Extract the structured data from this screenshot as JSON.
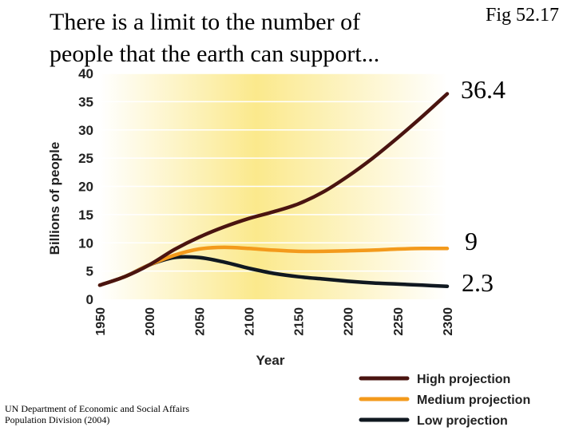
{
  "heading": {
    "line1": "There is a limit to the number of",
    "line2": "people that the earth can support..."
  },
  "figure_label": "Fig 52.17",
  "callouts": {
    "high": "36.4",
    "medium": "9",
    "low": "2.3"
  },
  "source": {
    "line1": "UN Department of Economic and Social Affairs",
    "line2": "Population Division (2004)"
  },
  "colors": {
    "high": "#4a1410",
    "medium": "#f39a1c",
    "low": "#101820",
    "background_left": "#ffffff",
    "background_center": "#fbe98c",
    "gridline": "#ffffff"
  },
  "chart_data": {
    "type": "line",
    "title": "",
    "xlabel": "Year",
    "ylabel": "Billions of people",
    "xlim": [
      1950,
      2300
    ],
    "ylim": [
      0,
      40
    ],
    "x_ticks": [
      "1950",
      "2000",
      "2050",
      "2100",
      "2150",
      "2200",
      "2250",
      "2300"
    ],
    "y_ticks": [
      "0",
      "5",
      "10",
      "15",
      "20",
      "25",
      "30",
      "35",
      "40"
    ],
    "legend_position": "bottom-right",
    "series": [
      {
        "name": "High projection",
        "color_key": "high",
        "x": [
          1950,
          1975,
          2000,
          2025,
          2050,
          2075,
          2100,
          2125,
          2150,
          2175,
          2200,
          2225,
          2250,
          2275,
          2300
        ],
        "y": [
          2.5,
          4.0,
          6.1,
          8.8,
          11.0,
          12.8,
          14.3,
          15.5,
          16.9,
          19.0,
          21.8,
          25.0,
          28.6,
          32.4,
          36.4
        ]
      },
      {
        "name": "Medium projection",
        "color_key": "medium",
        "x": [
          1950,
          1975,
          2000,
          2025,
          2050,
          2075,
          2100,
          2125,
          2150,
          2175,
          2200,
          2225,
          2250,
          2275,
          2300
        ],
        "y": [
          2.5,
          4.0,
          6.1,
          7.8,
          8.9,
          9.2,
          9.0,
          8.7,
          8.5,
          8.5,
          8.6,
          8.7,
          8.9,
          9.0,
          9.0
        ]
      },
      {
        "name": "Low projection",
        "color_key": "low",
        "x": [
          1950,
          1975,
          2000,
          2025,
          2050,
          2075,
          2100,
          2125,
          2150,
          2175,
          2200,
          2225,
          2250,
          2275,
          2300
        ],
        "y": [
          2.5,
          4.0,
          6.1,
          7.4,
          7.4,
          6.6,
          5.5,
          4.6,
          4.0,
          3.6,
          3.2,
          2.9,
          2.7,
          2.5,
          2.3
        ]
      }
    ]
  }
}
